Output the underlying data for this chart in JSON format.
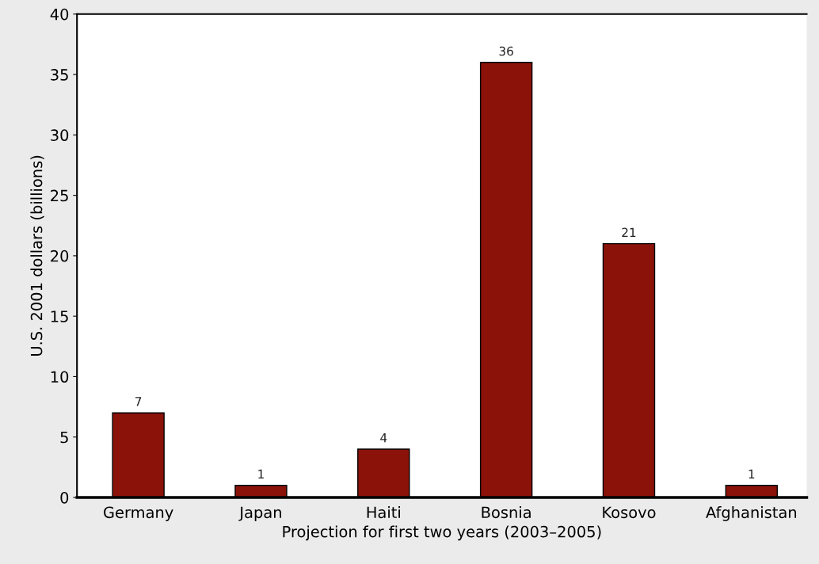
{
  "chart_data": {
    "type": "bar",
    "categories": [
      "Germany",
      "Japan",
      "Haiti",
      "Bosnia",
      "Kosovo",
      "Afghanistan"
    ],
    "values": [
      7,
      1,
      4,
      36,
      21,
      1
    ],
    "color": "#8b1209",
    "xlabel": "Projection for first two years (2003–2005)",
    "ylabel": "U.S. 2001 dollars (billions)",
    "ylim": [
      0,
      40
    ],
    "yticks": [
      0,
      5,
      10,
      15,
      20,
      25,
      30,
      35,
      40
    ],
    "data_labels": true,
    "grid": false,
    "legend": false
  }
}
